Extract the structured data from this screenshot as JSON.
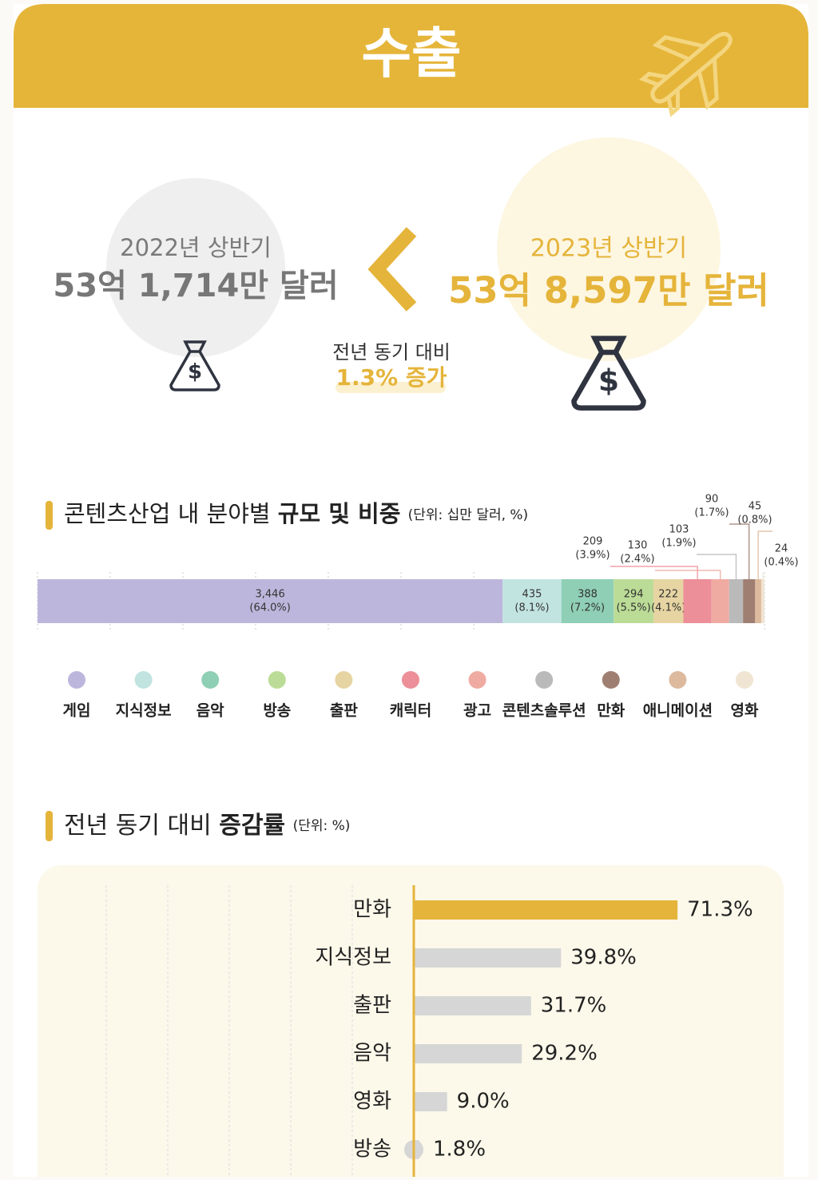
{
  "header": {
    "title": "수출"
  },
  "comparison": {
    "previous": {
      "period": "2022년 상반기",
      "amount": "53억 1,714만 달러"
    },
    "current": {
      "period": "2023년 상반기",
      "amount": "53억 8,597만 달러"
    },
    "change": {
      "label": "전년 동기 대비",
      "value": "1.3% 증가"
    }
  },
  "chart_data": [
    {
      "type": "stacked-bar",
      "title": "콘텐츠산업 내 분야별",
      "title_emphasis": "규모 및 비중",
      "unit": "(단위: 십만 달러, %)",
      "categories": [
        "게임",
        "지식정보",
        "음악",
        "방송",
        "출판",
        "캐릭터",
        "광고",
        "콘텐츠솔루션",
        "만화",
        "애니메이션",
        "영화"
      ],
      "values": [
        3446,
        435,
        388,
        294,
        222,
        209,
        130,
        103,
        90,
        45,
        24
      ],
      "value_labels": [
        "3,446",
        "435",
        "388",
        "294",
        "222",
        "209",
        "130",
        "103",
        "90",
        "45",
        "24"
      ],
      "shares": [
        64.0,
        8.1,
        7.2,
        5.5,
        4.1,
        3.9,
        2.4,
        1.9,
        1.7,
        0.8,
        0.4
      ],
      "share_labels": [
        "(64.0%)",
        "(8.1%)",
        "(7.2%)",
        "(5.5%)",
        "(4.1%)",
        "(3.9%)",
        "(2.4%)",
        "(1.9%)",
        "(1.7%)",
        "(0.8%)",
        "(0.4%)"
      ],
      "colors": [
        "#bdb6dc",
        "#c2e4e1",
        "#8fcfb5",
        "#bbdc96",
        "#e6d5a2",
        "#ec8f98",
        "#efaba2",
        "#bababa",
        "#a07f73",
        "#ddba9e",
        "#f0e5d3"
      ]
    },
    {
      "type": "bar",
      "orientation": "horizontal",
      "title": "전년 동기 대비",
      "title_emphasis": "증감률",
      "unit": "(단위: %)",
      "categories": [
        "만화",
        "지식정보",
        "출판",
        "음악",
        "영화",
        "방송"
      ],
      "values": [
        71.3,
        39.8,
        31.7,
        29.2,
        9.0,
        1.8
      ],
      "value_labels": [
        "71.3%",
        "39.8%",
        "31.7%",
        "29.2%",
        "9.0%",
        "1.8%"
      ],
      "colors": [
        "#e5b43a",
        "#d6d6d6",
        "#d6d6d6",
        "#d6d6d6",
        "#d6d6d6",
        "#d6d6d6"
      ],
      "xlim": [
        0,
        100
      ]
    }
  ]
}
